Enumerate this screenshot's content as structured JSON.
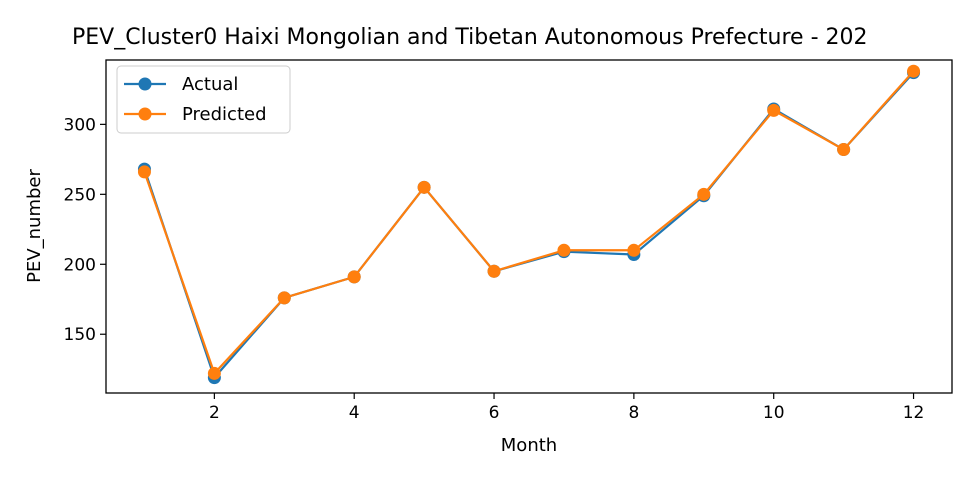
{
  "chart_data": {
    "type": "line",
    "title": "PEV_Cluster0 Haixi Mongolian and Tibetan Autonomous Prefecture - 202",
    "xlabel": "Month",
    "ylabel": "PEV_number",
    "x": [
      1,
      2,
      3,
      4,
      5,
      6,
      7,
      8,
      9,
      10,
      11,
      12
    ],
    "xlim": [
      0.45,
      12.55
    ],
    "ylim": [
      108,
      346
    ],
    "xticks": [
      2,
      4,
      6,
      8,
      10,
      12
    ],
    "yticks": [
      150,
      200,
      250,
      300
    ],
    "legend_position": "upper-left",
    "grid": false,
    "series": [
      {
        "name": "Actual",
        "color": "#1f77b4",
        "values": [
          268,
          119,
          176,
          191,
          255,
          195,
          209,
          207,
          249,
          311,
          282,
          337
        ]
      },
      {
        "name": "Predicted",
        "color": "#ff7f0e",
        "values": [
          266,
          122,
          176,
          191,
          255,
          195,
          210,
          210,
          250,
          310,
          282,
          338
        ]
      }
    ]
  }
}
